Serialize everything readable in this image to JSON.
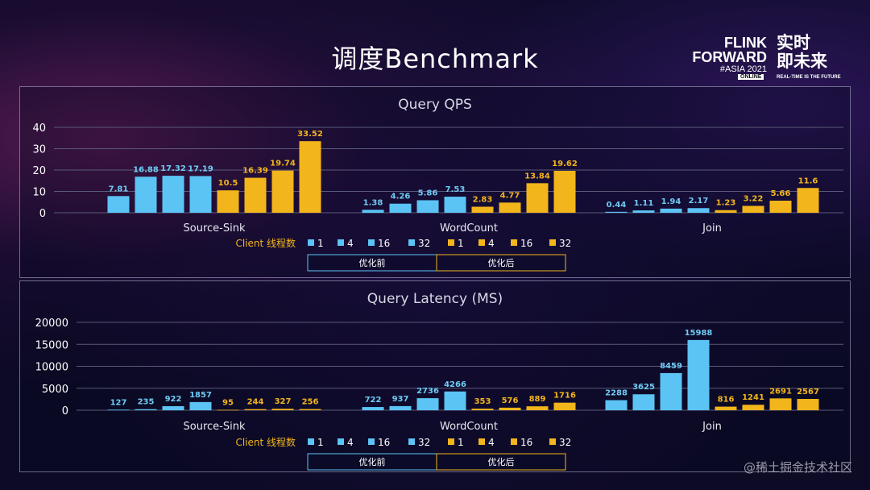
{
  "slide": {
    "title": "调度Benchmark",
    "logo": {
      "flink": "FLINK",
      "forward": "FORWARD",
      "asia": "#ASIA 2021",
      "online": "ONLINE",
      "cn_line1": "实时",
      "cn_line2": "即未来",
      "tagline": "REAL-TIME IS THE FUTURE"
    },
    "watermark": "@稀土掘金技术社区"
  },
  "colors": {
    "before": "#5bc4f5",
    "after": "#f2b51b",
    "before_label": "#6ecbf4",
    "after_label": "#f2b51b",
    "grid": "#5a5a78",
    "axis_text": "#ffffff"
  },
  "chart_data": [
    {
      "type": "bar",
      "title": "Query QPS",
      "xlabel": "",
      "ylabel": "",
      "ylim": [
        0,
        40
      ],
      "yticks": [
        0,
        10,
        20,
        30,
        40
      ],
      "grid": true,
      "categories": [
        "Source-Sink",
        "WordCount",
        "Join"
      ],
      "legend_title": "Client 线程数",
      "group_labels": [
        "优化前",
        "优化后"
      ],
      "legend_entries": [
        "1",
        "4",
        "16",
        "32",
        "1",
        "4",
        "16",
        "32"
      ],
      "series": [
        {
          "name": "1",
          "group": "优化前",
          "values": [
            7.81,
            1.38,
            0.44
          ]
        },
        {
          "name": "4",
          "group": "优化前",
          "values": [
            16.88,
            4.26,
            1.11
          ]
        },
        {
          "name": "16",
          "group": "优化前",
          "values": [
            17.32,
            5.86,
            1.94
          ]
        },
        {
          "name": "32",
          "group": "优化前",
          "values": [
            17.19,
            7.53,
            2.17
          ]
        },
        {
          "name": "1",
          "group": "优化后",
          "values": [
            10.5,
            2.83,
            1.23
          ]
        },
        {
          "name": "4",
          "group": "优化后",
          "values": [
            16.39,
            4.77,
            3.22
          ]
        },
        {
          "name": "16",
          "group": "优化后",
          "values": [
            19.74,
            13.84,
            5.66
          ]
        },
        {
          "name": "32",
          "group": "优化后",
          "values": [
            33.52,
            19.62,
            11.6
          ]
        }
      ]
    },
    {
      "type": "bar",
      "title": "Query Latency (MS)",
      "xlabel": "",
      "ylabel": "",
      "ylim": [
        0,
        20000
      ],
      "yticks": [
        0,
        5000,
        10000,
        15000,
        20000
      ],
      "grid": true,
      "categories": [
        "Source-Sink",
        "WordCount",
        "Join"
      ],
      "legend_title": "Client 线程数",
      "group_labels": [
        "优化前",
        "优化后"
      ],
      "legend_entries": [
        "1",
        "4",
        "16",
        "32",
        "1",
        "4",
        "16",
        "32"
      ],
      "series": [
        {
          "name": "1",
          "group": "优化前",
          "values": [
            127,
            722,
            2288
          ]
        },
        {
          "name": "4",
          "group": "优化前",
          "values": [
            235,
            937,
            3625
          ]
        },
        {
          "name": "16",
          "group": "优化前",
          "values": [
            922,
            2736,
            8459
          ]
        },
        {
          "name": "32",
          "group": "优化前",
          "values": [
            1857,
            4266,
            15988
          ]
        },
        {
          "name": "1",
          "group": "优化后",
          "values": [
            95,
            353,
            816
          ]
        },
        {
          "name": "4",
          "group": "优化后",
          "values": [
            244,
            576,
            1241
          ]
        },
        {
          "name": "16",
          "group": "优化后",
          "values": [
            327,
            889,
            2691
          ]
        },
        {
          "name": "32",
          "group": "优化后",
          "values": [
            256,
            1716,
            2567
          ]
        }
      ]
    }
  ]
}
